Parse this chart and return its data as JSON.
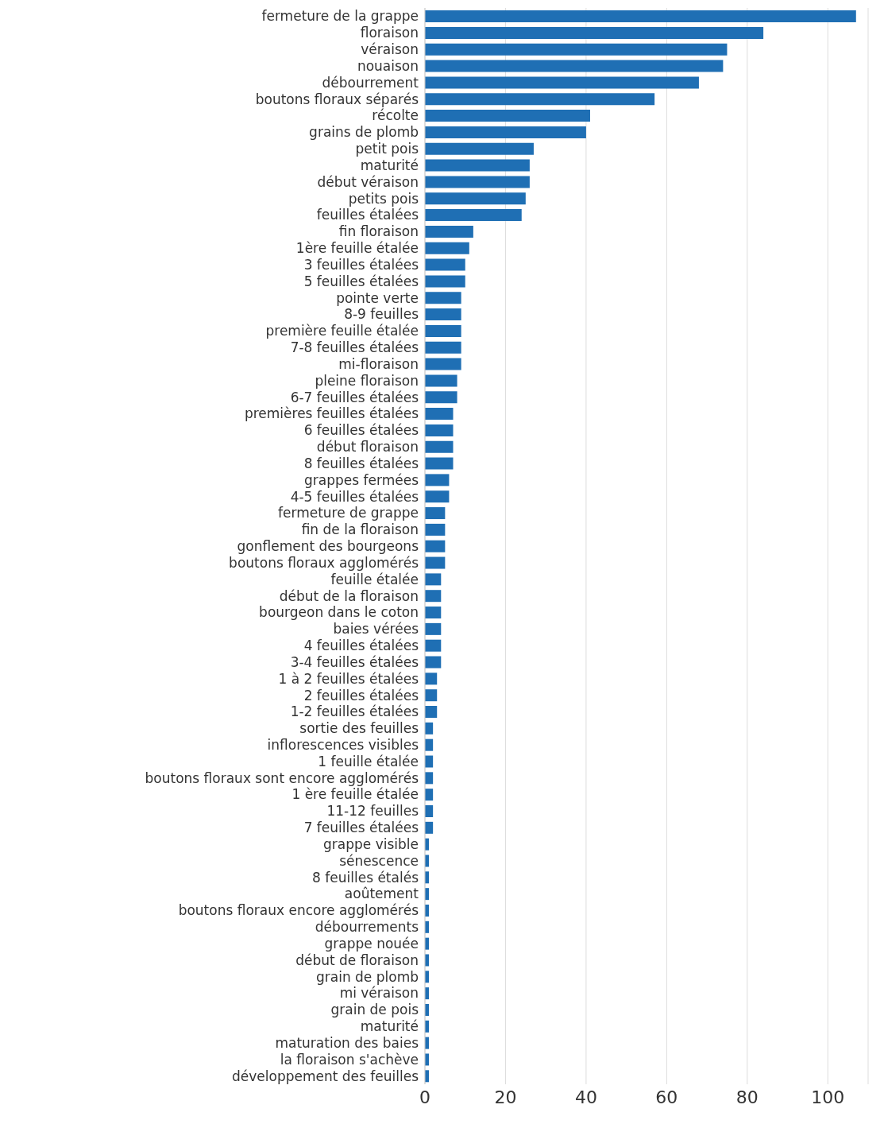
{
  "chart_data": {
    "type": "bar",
    "orientation": "horizontal",
    "color": "#1f6fb4",
    "categories": [
      "fermeture de la grappe",
      "floraison",
      "véraison",
      "nouaison",
      "débourrement",
      "boutons floraux séparés",
      "récolte",
      "grains de plomb",
      "petit pois",
      "maturité",
      "début véraison",
      "petits pois",
      "feuilles étalées",
      "fin floraison",
      "1ère feuille étalée",
      "3 feuilles étalées",
      "5 feuilles étalées",
      "pointe verte",
      "8-9 feuilles",
      "première feuille étalée",
      "7-8 feuilles étalées",
      "mi-floraison",
      "pleine floraison",
      "6-7 feuilles étalées",
      "premières feuilles étalées",
      "6 feuilles étalées",
      "début floraison",
      "8 feuilles étalées",
      "grappes fermées",
      "4-5 feuilles étalées",
      "fermeture de grappe",
      "fin de la floraison",
      "gonflement des bourgeons",
      "boutons floraux agglomérés",
      "feuille étalée",
      "début de la floraison",
      "bourgeon dans le coton",
      "baies vérées",
      "4 feuilles étalées",
      "3-4 feuilles étalées",
      "1 à 2 feuilles étalées",
      "2 feuilles étalées",
      "1-2 feuilles étalées",
      "sortie des feuilles",
      "inflorescences visibles",
      "1 feuille étalée",
      "boutons floraux sont encore agglomérés",
      "1 ère feuille étalée",
      "11-12 feuilles",
      "7 feuilles étalées",
      "grappe visible",
      "sénescence",
      "8 feuilles étalés",
      "aoûtement",
      "boutons floraux encore agglomérés",
      "débourrements",
      "grappe nouée",
      "début de floraison",
      "grain de plomb",
      "mi véraison",
      "grain de pois",
      "maturité",
      "maturation des baies",
      "la floraison s'achève",
      "développement des feuilles"
    ],
    "values": [
      107,
      84,
      75,
      74,
      68,
      57,
      41,
      40,
      27,
      26,
      26,
      25,
      24,
      12,
      11,
      10,
      10,
      9,
      9,
      9,
      9,
      9,
      8,
      8,
      7,
      7,
      7,
      7,
      6,
      6,
      5,
      5,
      5,
      5,
      4,
      4,
      4,
      4,
      4,
      4,
      3,
      3,
      3,
      2,
      2,
      2,
      2,
      2,
      2,
      2,
      1,
      1,
      1,
      1,
      1,
      1,
      1,
      1,
      1,
      1,
      1,
      1,
      1,
      1,
      1
    ],
    "xlim": [
      0,
      110
    ],
    "xticks": [
      0,
      20,
      40,
      60,
      80,
      100
    ],
    "grid": "x"
  }
}
